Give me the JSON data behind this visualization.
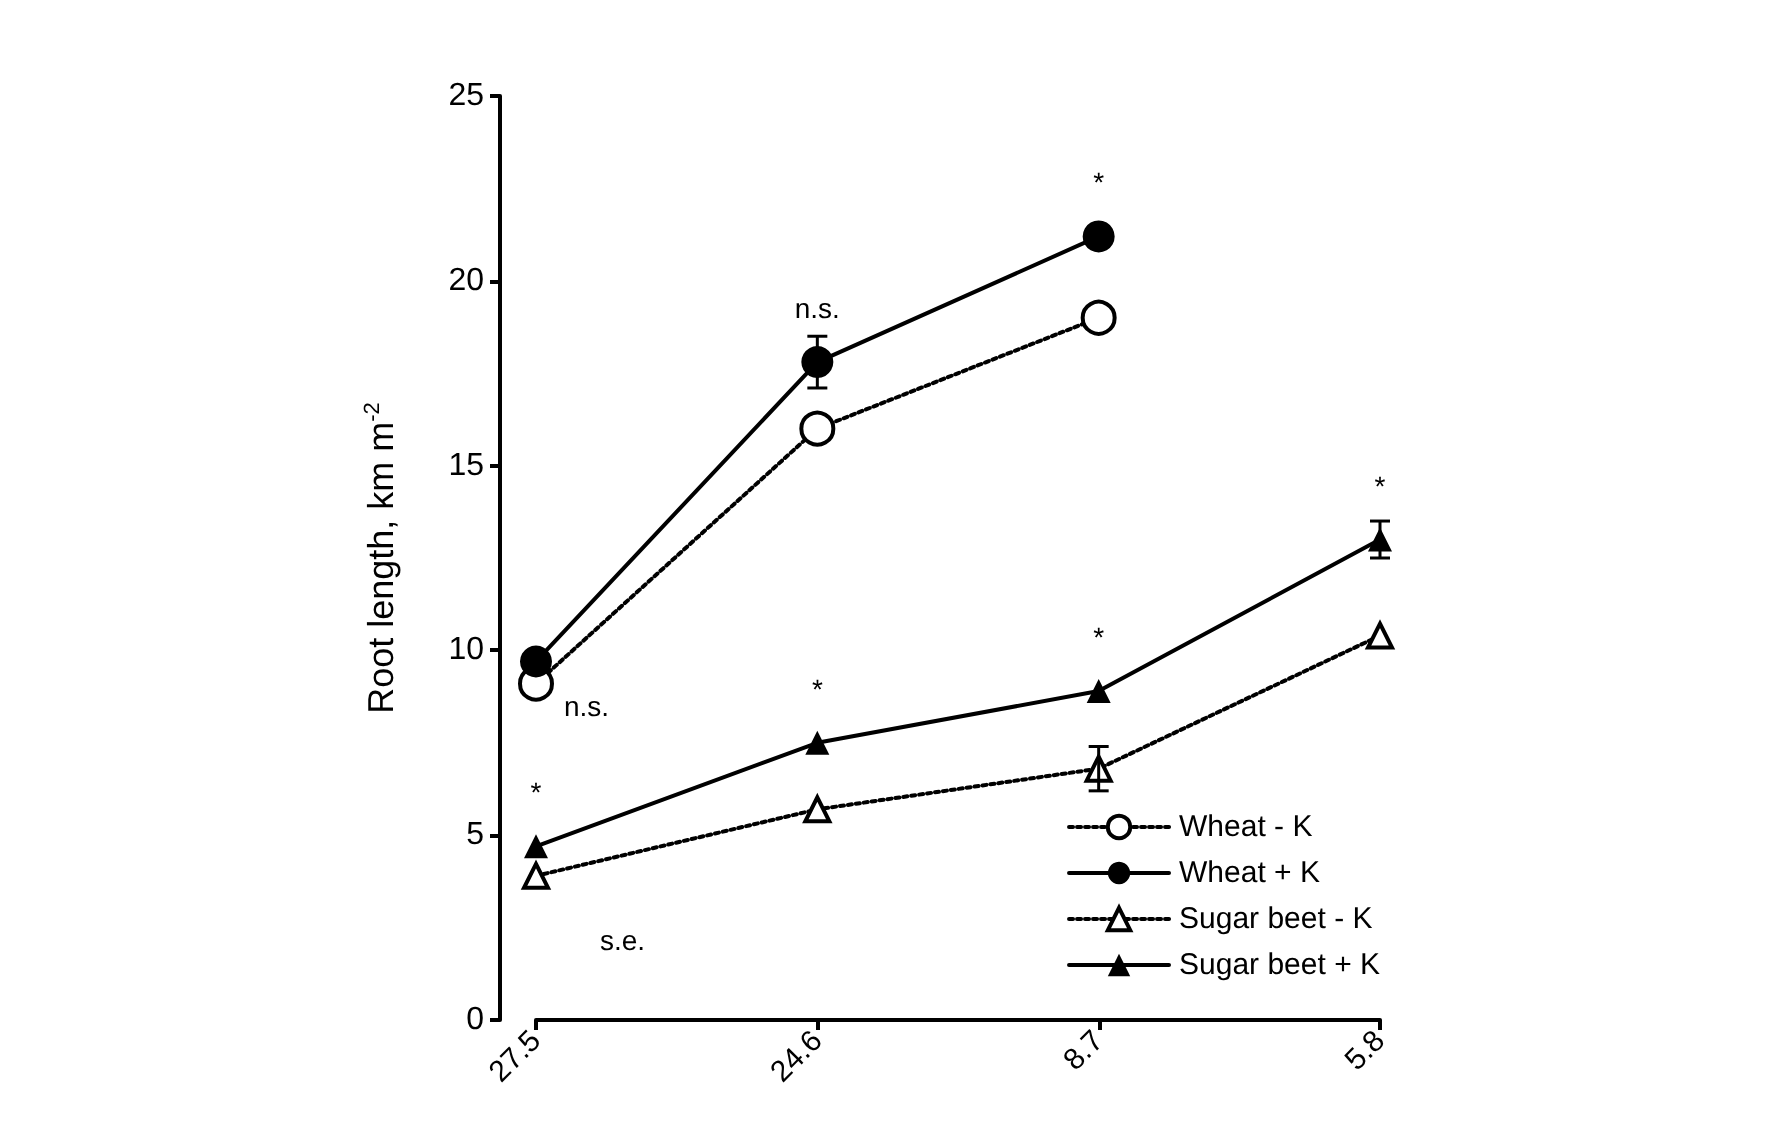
{
  "chart_data": {
    "type": "line",
    "ylabel": "Root length, km m$^{-2}$",
    "categories": [
      "27.5",
      "24.6",
      "8.7",
      "5.8"
    ],
    "series": [
      {
        "name": "Wheat - K",
        "color": "#000000",
        "marker": "circle",
        "line_style": "dotted",
        "values": [
          9.1,
          16.0,
          19.0,
          null
        ]
      },
      {
        "name": "Wheat + K",
        "color": "#000000",
        "marker": "circle",
        "line_style": "solid",
        "values": [
          9.7,
          17.8,
          21.2,
          null
        ],
        "errors": [
          null,
          0.7,
          null,
          null
        ]
      },
      {
        "name": "Sugar beet - K",
        "color": "#000000",
        "marker": "triangle",
        "line_style": "dotted",
        "values": [
          3.9,
          5.7,
          6.8,
          10.4
        ],
        "errors": [
          null,
          null,
          0.6,
          null
        ]
      },
      {
        "name": "Sugar beet + K",
        "color": "#000000",
        "marker": "triangle",
        "line_style": "solid",
        "values": [
          4.7,
          7.5,
          8.9,
          13.0
        ],
        "errors": [
          null,
          null,
          null,
          0.5
        ]
      }
    ],
    "ylim": [
      0,
      25
    ],
    "yticks": [
      0,
      5,
      10,
      15,
      20,
      25
    ],
    "grid": false,
    "legend": "bottom right",
    "annotations": [
      {
        "text": "*",
        "x": "8.7",
        "y": 21.2
      },
      {
        "text": "n.s.",
        "x": "24.6",
        "y": 17.8
      },
      {
        "text": "n.s.",
        "x": "27.5",
        "y": 9.1
      },
      {
        "text": "*",
        "x": "27.5",
        "y": 4.7
      },
      {
        "text": "*",
        "x": "24.6",
        "y": 7.5
      },
      {
        "text": "*",
        "x": "8.7",
        "y": 8.9
      },
      {
        "text": "*",
        "x": "5.8",
        "y": 13.0
      },
      "s.e."
    ]
  }
}
